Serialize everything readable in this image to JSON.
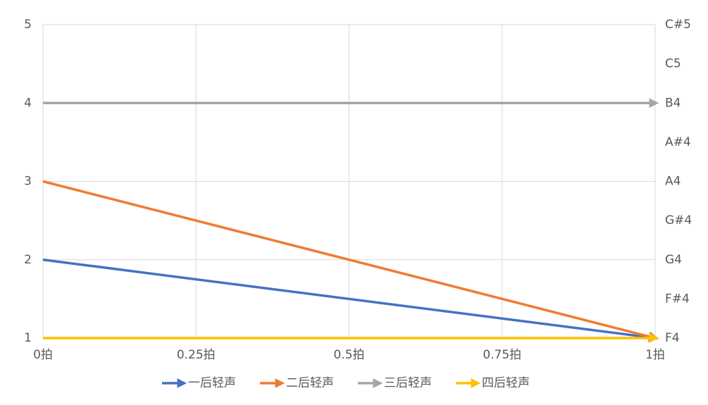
{
  "chart_data": {
    "type": "line",
    "x": [
      0,
      1
    ],
    "xlim": [
      0,
      1
    ],
    "xticks": [
      {
        "value": 0,
        "label": "0拍"
      },
      {
        "value": 0.25,
        "label": "0.25拍"
      },
      {
        "value": 0.5,
        "label": "0.5拍"
      },
      {
        "value": 0.75,
        "label": "0.75拍"
      },
      {
        "value": 1,
        "label": "1拍"
      }
    ],
    "ylim": [
      1,
      5
    ],
    "yticks": [
      1,
      2,
      3,
      4,
      5
    ],
    "y2lim": [
      1,
      5
    ],
    "y2ticks": [
      {
        "value": 1,
        "label": "F4"
      },
      {
        "value": 1.5,
        "label": "F#4"
      },
      {
        "value": 2,
        "label": "G4"
      },
      {
        "value": 2.5,
        "label": "G#4"
      },
      {
        "value": 3,
        "label": "A4"
      },
      {
        "value": 3.5,
        "label": "A#4"
      },
      {
        "value": 4,
        "label": "B4"
      },
      {
        "value": 4.5,
        "label": "C5"
      },
      {
        "value": 5,
        "label": "C#5"
      }
    ],
    "grid": true,
    "legend": "bottom",
    "series": [
      {
        "name": "一后轻声",
        "color": "#4472c4",
        "values": [
          2,
          1
        ]
      },
      {
        "name": "二后轻声",
        "color": "#ed7d31",
        "values": [
          3,
          1
        ]
      },
      {
        "name": "三后轻声",
        "color": "#a5a5a5",
        "values": [
          4,
          4
        ]
      },
      {
        "name": "四后轻声",
        "color": "#ffc000",
        "values": [
          1,
          1
        ]
      }
    ]
  }
}
